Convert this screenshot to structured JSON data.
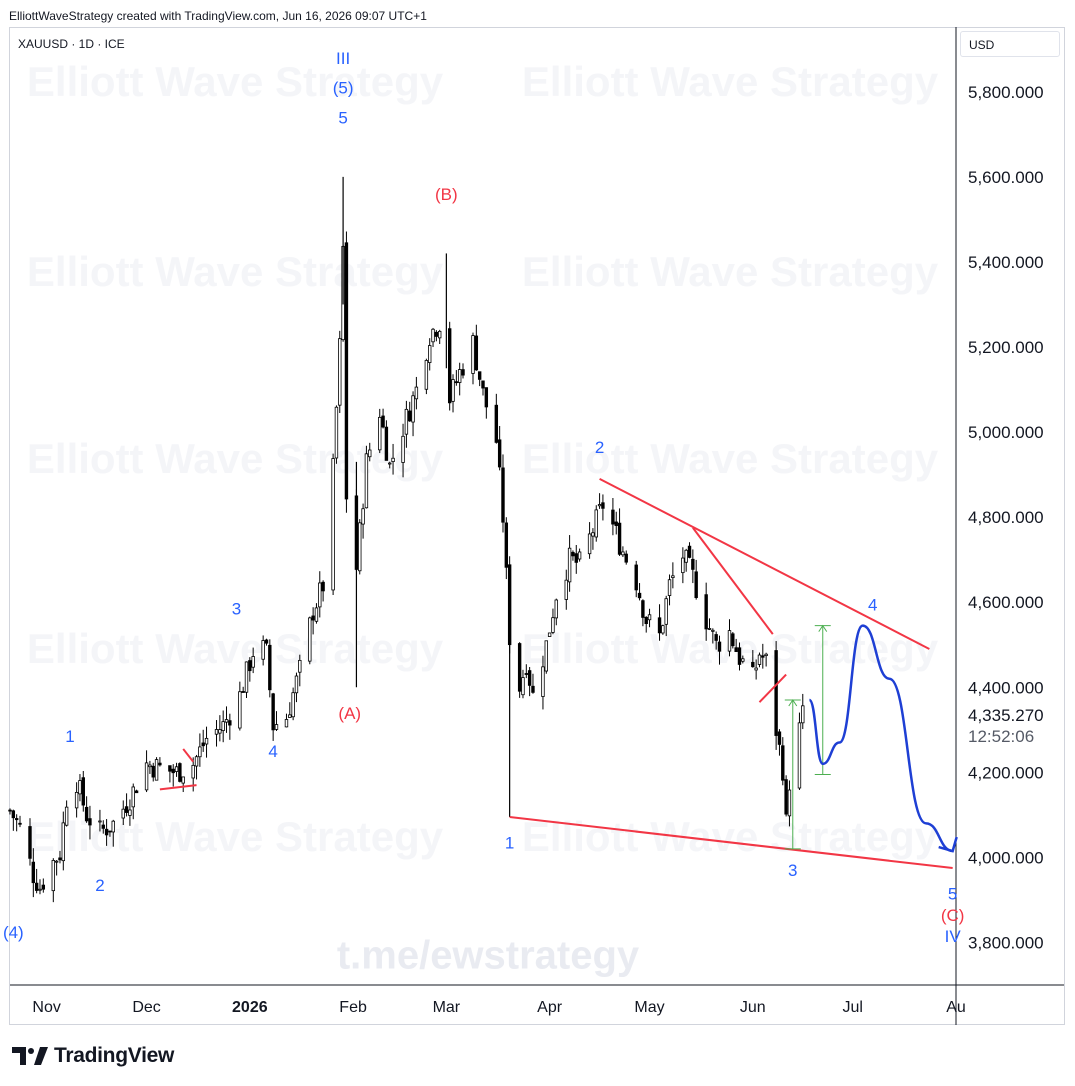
{
  "header": {
    "credit": "ElliottWaveStrategy created with TradingView.com, Jun 16, 2026 09:07 UTC+1",
    "symbol": "XAUUSD · 1D · ICE",
    "currency": "USD"
  },
  "footer": {
    "brand": "TradingView"
  },
  "colors": {
    "wave_blue": "#2962ff",
    "wave_red": "#f23645",
    "trendline": "#f23645",
    "projection": "#1e3fd4",
    "measure": "#4caf50",
    "candle": "#000000",
    "axis_text": "#131722"
  },
  "chart_data": {
    "type": "candlestick",
    "title": "",
    "watermarks": [
      "Elliott Wave Strategy"
    ],
    "bottom_watermark": "t.me/ewstrategy",
    "y_axis": {
      "range": [
        3700,
        5950
      ],
      "ticks": [
        "5,800.000",
        "5,600.000",
        "5,400.000",
        "5,200.000",
        "5,000.000",
        "4,800.000",
        "4,600.000",
        "4,400.000",
        "4,200.000",
        "4,000.000",
        "3,800.000"
      ],
      "tick_values": [
        5800,
        5600,
        5400,
        5200,
        5000,
        4800,
        4600,
        4400,
        4200,
        4000,
        3800
      ],
      "last_price": "4,335.270",
      "countdown": "12:52:06"
    },
    "x_axis": {
      "range": [
        "2025-10-21",
        "2026-08-01"
      ],
      "ticks": [
        {
          "label": "Nov",
          "date": "2025-11-01",
          "bold": false
        },
        {
          "label": "Dec",
          "date": "2025-12-01",
          "bold": false
        },
        {
          "label": "2026",
          "date": "2026-01-01",
          "bold": true
        },
        {
          "label": "Feb",
          "date": "2026-02-01",
          "bold": false
        },
        {
          "label": "Mar",
          "date": "2026-03-01",
          "bold": false
        },
        {
          "label": "Apr",
          "date": "2026-04-01",
          "bold": false
        },
        {
          "label": "May",
          "date": "2026-05-01",
          "bold": false
        },
        {
          "label": "Jun",
          "date": "2026-06-01",
          "bold": false
        },
        {
          "label": "Jul",
          "date": "2026-07-01",
          "bold": false
        },
        {
          "label": "Au",
          "date": "2026-08-01",
          "bold": false
        }
      ]
    },
    "price_path": [
      {
        "date": "2025-10-21",
        "close": 4110
      },
      {
        "date": "2025-10-24",
        "close": 4070
      },
      {
        "date": "2025-10-28",
        "close": 3960
      },
      {
        "date": "2025-10-30",
        "close": 3930
      },
      {
        "date": "2025-11-03",
        "close": 3990
      },
      {
        "date": "2025-11-05",
        "close": 4010
      },
      {
        "date": "2025-11-07",
        "close": 4140
      },
      {
        "date": "2025-11-10",
        "close": 4180
      },
      {
        "date": "2025-11-13",
        "close": 4100
      },
      {
        "date": "2025-11-17",
        "close": 4060
      },
      {
        "date": "2025-11-21",
        "close": 4080
      },
      {
        "date": "2025-11-26",
        "close": 4140
      },
      {
        "date": "2025-12-01",
        "close": 4220
      },
      {
        "date": "2025-12-05",
        "close": 4210
      },
      {
        "date": "2025-12-10",
        "close": 4200
      },
      {
        "date": "2025-12-15",
        "close": 4220
      },
      {
        "date": "2025-12-19",
        "close": 4280
      },
      {
        "date": "2025-12-24",
        "close": 4310
      },
      {
        "date": "2025-12-29",
        "close": 4380
      },
      {
        "date": "2026-01-03",
        "close": 4510
      },
      {
        "date": "2026-01-06",
        "close": 4480
      },
      {
        "date": "2026-01-08",
        "close": 4310
      },
      {
        "date": "2026-01-12",
        "close": 4330
      },
      {
        "date": "2026-01-16",
        "close": 4440
      },
      {
        "date": "2026-01-20",
        "close": 4580
      },
      {
        "date": "2026-01-23",
        "close": 4640
      },
      {
        "date": "2026-01-26",
        "close": 4910
      },
      {
        "date": "2026-01-28",
        "close": 5200
      },
      {
        "date": "2026-01-29",
        "close": 5430
      },
      {
        "date": "2026-01-30",
        "close": 4850
      },
      {
        "date": "2026-02-02",
        "close": 4680
      },
      {
        "date": "2026-02-05",
        "close": 4930
      },
      {
        "date": "2026-02-09",
        "close": 5050
      },
      {
        "date": "2026-02-12",
        "close": 4920
      },
      {
        "date": "2026-02-16",
        "close": 5010
      },
      {
        "date": "2026-02-20",
        "close": 5100
      },
      {
        "date": "2026-02-24",
        "close": 5230
      },
      {
        "date": "2026-02-27",
        "close": 5260
      },
      {
        "date": "2026-03-02",
        "close": 5080
      },
      {
        "date": "2026-03-05",
        "close": 5140
      },
      {
        "date": "2026-03-09",
        "close": 5210
      },
      {
        "date": "2026-03-12",
        "close": 5090
      },
      {
        "date": "2026-03-16",
        "close": 4980
      },
      {
        "date": "2026-03-18",
        "close": 4800
      },
      {
        "date": "2026-03-20",
        "close": 4520
      },
      {
        "date": "2026-03-23",
        "close": 4400
      },
      {
        "date": "2026-03-25",
        "close": 4460
      },
      {
        "date": "2026-03-27",
        "close": 4380
      },
      {
        "date": "2026-03-31",
        "close": 4500
      },
      {
        "date": "2026-04-03",
        "close": 4620
      },
      {
        "date": "2026-04-07",
        "close": 4700
      },
      {
        "date": "2026-04-10",
        "close": 4690
      },
      {
        "date": "2026-04-14",
        "close": 4770
      },
      {
        "date": "2026-04-17",
        "close": 4830
      },
      {
        "date": "2026-04-20",
        "close": 4780
      },
      {
        "date": "2026-04-23",
        "close": 4720
      },
      {
        "date": "2026-04-27",
        "close": 4650
      },
      {
        "date": "2026-04-30",
        "close": 4560
      },
      {
        "date": "2026-05-04",
        "close": 4520
      },
      {
        "date": "2026-05-07",
        "close": 4640
      },
      {
        "date": "2026-05-11",
        "close": 4710
      },
      {
        "date": "2026-05-14",
        "close": 4660
      },
      {
        "date": "2026-05-18",
        "close": 4560
      },
      {
        "date": "2026-05-21",
        "close": 4500
      },
      {
        "date": "2026-05-25",
        "close": 4530
      },
      {
        "date": "2026-05-28",
        "close": 4470
      },
      {
        "date": "2026-06-01",
        "close": 4420
      },
      {
        "date": "2026-06-03",
        "close": 4480
      },
      {
        "date": "2026-06-05",
        "close": 4460
      },
      {
        "date": "2026-06-08",
        "close": 4300
      },
      {
        "date": "2026-06-10",
        "close": 4210
      },
      {
        "date": "2026-06-11",
        "close": 4080
      },
      {
        "date": "2026-06-12",
        "close": 4180
      },
      {
        "date": "2026-06-15",
        "close": 4300
      },
      {
        "date": "2026-06-16",
        "close": 4335
      }
    ],
    "wave_labels": [
      {
        "text": "(4)",
        "date": "2025-10-22",
        "price": 3825,
        "color": "blue"
      },
      {
        "text": "1",
        "date": "2025-11-08",
        "price": 4285,
        "color": "blue"
      },
      {
        "text": "2",
        "date": "2025-11-17",
        "price": 3935,
        "color": "blue"
      },
      {
        "text": "3",
        "date": "2025-12-28",
        "price": 4585,
        "color": "blue"
      },
      {
        "text": "4",
        "date": "2026-01-08",
        "price": 4250,
        "color": "blue"
      },
      {
        "text": "III",
        "date": "2026-01-29",
        "price": 5880,
        "color": "blue"
      },
      {
        "text": "(5)",
        "date": "2026-01-29",
        "price": 5810,
        "color": "blue"
      },
      {
        "text": "5",
        "date": "2026-01-29",
        "price": 5740,
        "color": "blue"
      },
      {
        "text": "(A)",
        "date": "2026-01-31",
        "price": 4340,
        "color": "red"
      },
      {
        "text": "(B)",
        "date": "2026-02-29",
        "price": 5560,
        "color": "red"
      },
      {
        "text": "1",
        "date": "2026-03-20",
        "price": 4035,
        "color": "blue"
      },
      {
        "text": "2",
        "date": "2026-04-16",
        "price": 4965,
        "color": "blue"
      },
      {
        "text": "3",
        "date": "2026-06-13",
        "price": 3970,
        "color": "blue"
      },
      {
        "text": "4",
        "date": "2026-07-07",
        "price": 4595,
        "color": "blue"
      },
      {
        "text": "5",
        "date": "2026-07-31",
        "price": 3915,
        "color": "blue"
      },
      {
        "text": "(C)",
        "date": "2026-07-31",
        "price": 3865,
        "color": "red"
      },
      {
        "text": "IV",
        "date": "2026-07-31",
        "price": 3815,
        "color": "blue"
      }
    ],
    "trendlines": [
      {
        "from": {
          "date": "2026-04-16",
          "price": 4890
        },
        "to": {
          "date": "2026-07-24",
          "price": 4490
        }
      },
      {
        "from": {
          "date": "2026-05-14",
          "price": 4775
        },
        "to": {
          "date": "2026-06-07",
          "price": 4525
        }
      },
      {
        "from": {
          "date": "2026-03-20",
          "price": 4095
        },
        "to": {
          "date": "2026-07-31",
          "price": 3975
        }
      },
      {
        "from": {
          "date": "2026-06-03",
          "price": 4365
        },
        "to": {
          "date": "2026-06-11",
          "price": 4430
        }
      },
      {
        "from": {
          "date": "2025-12-05",
          "price": 4160
        },
        "to": {
          "date": "2025-12-16",
          "price": 4170
        }
      },
      {
        "from": {
          "date": "2025-12-12",
          "price": 4255
        },
        "to": {
          "date": "2025-12-15",
          "price": 4225
        }
      }
    ],
    "projection": [
      {
        "date": "2026-06-18",
        "price": 4370
      },
      {
        "date": "2026-06-22",
        "price": 4220
      },
      {
        "date": "2026-06-27",
        "price": 4270
      },
      {
        "date": "2026-07-04",
        "price": 4545
      },
      {
        "date": "2026-07-12",
        "price": 4420
      },
      {
        "date": "2026-07-23",
        "price": 4080
      },
      {
        "date": "2026-07-31",
        "price": 4015
      }
    ],
    "measurements": [
      {
        "date": "2026-06-13",
        "from": 4020,
        "to": 4370
      },
      {
        "date": "2026-06-22",
        "from": 4195,
        "to": 4545
      }
    ]
  }
}
